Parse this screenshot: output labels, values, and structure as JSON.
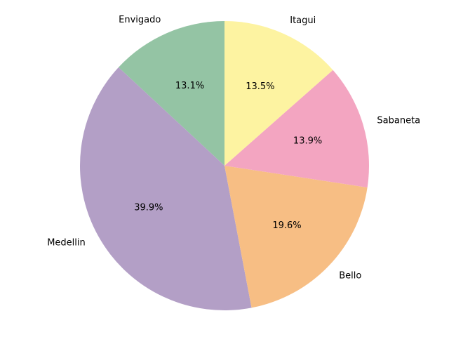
{
  "chart_data": {
    "type": "pie",
    "title": "",
    "start_angle_deg": 90,
    "direction": "counterclockwise",
    "legend": "none",
    "slices": [
      {
        "label": "Envigado",
        "value": 13.1,
        "pct_label": "13.1%",
        "color": "#94c4a4"
      },
      {
        "label": "Medellin",
        "value": 39.9,
        "pct_label": "39.9%",
        "color": "#b39fc6"
      },
      {
        "label": "Bello",
        "value": 19.6,
        "pct_label": "19.6%",
        "color": "#f7be84"
      },
      {
        "label": "Sabaneta",
        "value": 13.9,
        "pct_label": "13.9%",
        "color": "#f3a5c1"
      },
      {
        "label": "Itagui",
        "value": 13.5,
        "pct_label": "13.5%",
        "color": "#fdf3a1"
      }
    ]
  }
}
